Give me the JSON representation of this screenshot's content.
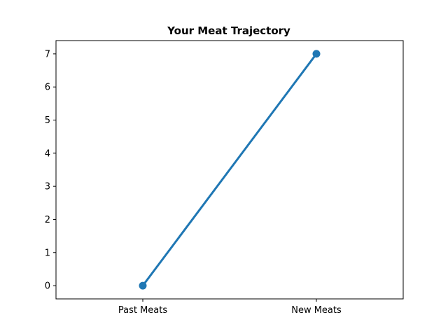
{
  "chart_data": {
    "type": "line",
    "title": "Your Meat Trajectory",
    "categories": [
      "Past Meats",
      "New Meats"
    ],
    "series": [
      {
        "values": [
          0,
          7
        ],
        "color": "#1f77b4"
      }
    ],
    "xlabel": "",
    "ylabel": "",
    "ylim": [
      -0.4,
      7.4
    ],
    "yticks": [
      0,
      1,
      2,
      3,
      4,
      5,
      6,
      7
    ],
    "grid": false,
    "legend": "none"
  }
}
